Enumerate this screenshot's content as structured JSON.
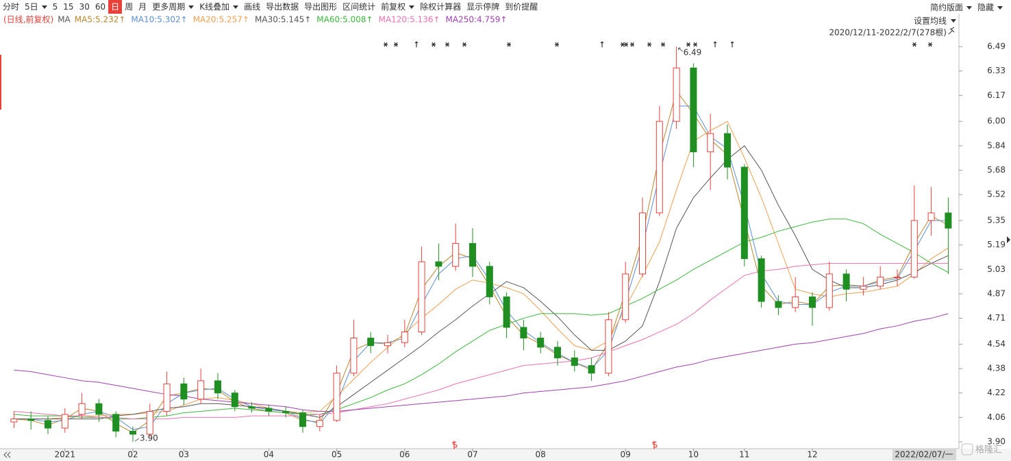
{
  "toolbar": {
    "items": [
      "分时",
      "5日",
      "5",
      "15",
      "30",
      "60",
      "日",
      "周",
      "月",
      "更多周期",
      "K线叠加",
      "画线",
      "导出数据",
      "导出图形",
      "区间统计",
      "前复权",
      "除权计算器",
      "显示停牌",
      "到价提醒"
    ],
    "right_items": [
      "简约版面",
      "隐藏"
    ]
  },
  "chart_data": {
    "type": "candlestick",
    "title": "(日线,前复权)",
    "indicator": "MA",
    "settings_label": "设置均线",
    "range_label": "2020/12/11-2022/2/7(278根)",
    "cursor_date": "2022/02/07/一",
    "categories": [
      null,
      null,
      null,
      "2021",
      null,
      null,
      null,
      "02",
      null,
      null,
      "03",
      null,
      null,
      null,
      null,
      "04",
      null,
      null,
      null,
      "05",
      null,
      null,
      null,
      "06",
      null,
      null,
      null,
      "07",
      null,
      null,
      null,
      "08",
      null,
      null,
      null,
      null,
      "09",
      null,
      null,
      null,
      "10",
      null,
      null,
      "11",
      null,
      null,
      null,
      "12",
      null,
      null,
      null,
      null,
      null,
      null,
      null,
      null
    ],
    "open": [
      4.03,
      4.05,
      4.04,
      3.99,
      4.08,
      4.15,
      4.08,
      3.97,
      3.95,
      4.1,
      4.28,
      4.18,
      4.3,
      4.22,
      4.13,
      4.12,
      4.1,
      4.09,
      4.0,
      4.04,
      4.35,
      4.58,
      4.53,
      4.55,
      4.62,
      5.08,
      5.05,
      5.2,
      5.05,
      4.85,
      4.65,
      4.58,
      4.52,
      4.45,
      4.4,
      4.35,
      4.7,
      5.0,
      5.4,
      6.0,
      6.35,
      5.8,
      5.92,
      5.7,
      5.1,
      4.82,
      4.78,
      4.85,
      4.78,
      5.0,
      4.9,
      4.92,
      4.98,
      4.98,
      5.35,
      5.4
    ],
    "high": [
      4.1,
      4.1,
      4.07,
      4.12,
      4.22,
      4.18,
      4.1,
      4.0,
      4.15,
      4.36,
      4.32,
      4.38,
      4.35,
      4.24,
      4.16,
      4.14,
      4.13,
      4.11,
      4.08,
      4.4,
      4.7,
      4.62,
      4.6,
      4.7,
      5.18,
      5.2,
      5.33,
      5.3,
      5.08,
      4.88,
      4.7,
      4.62,
      4.56,
      4.5,
      4.45,
      4.75,
      5.08,
      5.5,
      6.1,
      6.49,
      6.38,
      6.05,
      5.98,
      5.72,
      5.12,
      4.86,
      4.98,
      4.88,
      5.08,
      5.03,
      4.98,
      5.05,
      5.03,
      5.58,
      5.57,
      5.5
    ],
    "low": [
      3.99,
      3.98,
      3.95,
      3.96,
      4.05,
      4.03,
      3.93,
      3.9,
      3.93,
      4.07,
      4.14,
      4.15,
      4.18,
      4.1,
      4.09,
      4.07,
      4.06,
      3.96,
      3.97,
      4.03,
      4.33,
      4.48,
      4.48,
      4.52,
      4.6,
      4.96,
      5.02,
      4.98,
      4.8,
      4.58,
      4.5,
      4.48,
      4.4,
      4.36,
      4.3,
      4.33,
      4.68,
      4.98,
      5.38,
      5.95,
      5.7,
      5.55,
      5.62,
      5.05,
      4.78,
      4.73,
      4.75,
      4.66,
      4.76,
      4.82,
      4.86,
      4.9,
      4.92,
      4.97,
      5.25,
      5.0
    ],
    "close": [
      4.05,
      4.04,
      3.99,
      4.08,
      4.15,
      4.08,
      3.97,
      3.95,
      4.1,
      4.28,
      4.18,
      4.3,
      4.22,
      4.13,
      4.12,
      4.1,
      4.09,
      4.0,
      4.04,
      4.35,
      4.58,
      4.53,
      4.55,
      4.62,
      5.08,
      5.05,
      5.2,
      5.05,
      4.85,
      4.65,
      4.58,
      4.52,
      4.45,
      4.4,
      4.35,
      4.7,
      5.0,
      5.4,
      6.0,
      6.35,
      5.8,
      5.92,
      5.7,
      5.1,
      4.82,
      4.78,
      4.85,
      4.78,
      5.0,
      4.9,
      4.92,
      4.98,
      4.98,
      5.35,
      5.4,
      5.3
    ],
    "up_color": "#e8413a",
    "down_color": "#1f8f22",
    "series": [
      {
        "name": "MA5:5.232↑",
        "color": "#b8862e",
        "values": [
          4.05,
          4.04,
          4.01,
          4.05,
          4.12,
          4.1,
          4.02,
          3.96,
          4.04,
          4.2,
          4.22,
          4.25,
          4.24,
          4.16,
          4.12,
          4.1,
          4.09,
          4.04,
          4.03,
          4.22,
          4.5,
          4.55,
          4.54,
          4.6,
          4.9,
          5.05,
          5.14,
          5.1,
          4.92,
          4.72,
          4.6,
          4.54,
          4.47,
          4.42,
          4.37,
          4.55,
          4.88,
          5.25,
          5.78,
          6.2,
          6.05,
          5.88,
          5.78,
          5.35,
          4.92,
          4.8,
          4.82,
          4.8,
          4.92,
          4.93,
          4.92,
          4.96,
          4.98,
          5.2,
          5.38,
          5.32
        ]
      },
      {
        "name": "MA10:5.302↑",
        "color": "#5b8fd6",
        "values": [
          4.05,
          4.05,
          4.03,
          4.04,
          4.08,
          4.1,
          4.06,
          3.98,
          4.0,
          4.15,
          4.22,
          4.24,
          4.25,
          4.18,
          4.13,
          4.11,
          4.1,
          4.05,
          4.02,
          4.15,
          4.43,
          4.55,
          4.55,
          4.58,
          4.8,
          5.0,
          5.1,
          5.12,
          4.96,
          4.76,
          4.63,
          4.55,
          4.48,
          4.42,
          4.38,
          4.5,
          4.82,
          5.18,
          5.65,
          6.1,
          6.1,
          5.9,
          5.82,
          5.45,
          5.0,
          4.82,
          4.8,
          4.8,
          4.88,
          4.92,
          4.92,
          4.95,
          4.97,
          5.15,
          5.35,
          5.35
        ]
      },
      {
        "name": "MA20:5.257↑",
        "color": "#f0a050",
        "values": [
          4.05,
          4.05,
          4.05,
          4.06,
          4.07,
          4.07,
          4.08,
          4.08,
          4.09,
          4.1,
          4.14,
          4.18,
          4.19,
          4.17,
          4.15,
          4.12,
          4.1,
          4.09,
          4.1,
          4.2,
          4.31,
          4.42,
          4.52,
          4.61,
          4.71,
          4.8,
          4.9,
          4.96,
          4.94,
          4.91,
          4.87,
          4.76,
          4.64,
          4.53,
          4.5,
          4.56,
          4.78,
          4.99,
          5.21,
          5.55,
          5.87,
          5.94,
          6.0,
          5.76,
          5.5,
          5.2,
          4.9,
          4.87,
          4.85,
          4.87,
          4.88,
          4.9,
          4.92,
          5.0,
          5.1,
          5.17
        ]
      },
      {
        "name": "MA30:5.145↑",
        "color": "#555555",
        "values": [
          4.05,
          4.05,
          4.05,
          4.05,
          4.05,
          4.05,
          4.07,
          4.08,
          4.1,
          4.12,
          4.13,
          4.15,
          4.15,
          4.14,
          4.13,
          4.12,
          4.1,
          4.08,
          4.06,
          4.13,
          4.21,
          4.29,
          4.37,
          4.45,
          4.53,
          4.62,
          4.7,
          4.79,
          4.87,
          4.95,
          4.91,
          4.82,
          4.72,
          4.6,
          4.5,
          4.5,
          4.56,
          4.66,
          4.95,
          5.3,
          5.5,
          5.63,
          5.75,
          5.84,
          5.68,
          5.45,
          5.25,
          5.03,
          4.96,
          4.91,
          4.91,
          4.93,
          4.96,
          5.01,
          5.07,
          5.12
        ]
      },
      {
        "name": "MA60:5.008↑",
        "color": "#3cb83c",
        "values": [
          4.08,
          4.07,
          4.07,
          4.07,
          4.06,
          4.06,
          4.05,
          4.05,
          4.06,
          4.07,
          4.09,
          4.1,
          4.11,
          4.12,
          4.11,
          4.1,
          4.09,
          4.08,
          4.08,
          4.11,
          4.15,
          4.19,
          4.24,
          4.28,
          4.34,
          4.41,
          4.49,
          4.56,
          4.63,
          4.67,
          4.71,
          4.74,
          4.74,
          4.74,
          4.73,
          4.74,
          4.79,
          4.84,
          4.9,
          4.96,
          5.03,
          5.09,
          5.15,
          5.21,
          5.24,
          5.28,
          5.31,
          5.34,
          5.36,
          5.36,
          5.33,
          5.26,
          5.2,
          5.14,
          5.07,
          5.01
        ]
      },
      {
        "name": "MA120:5.136↑",
        "color": "#ef6fb0",
        "values": [
          4.1,
          4.09,
          4.08,
          4.07,
          4.07,
          4.06,
          4.06,
          4.05,
          4.05,
          4.05,
          4.06,
          4.06,
          4.06,
          4.06,
          4.07,
          4.07,
          4.07,
          4.07,
          4.08,
          4.09,
          4.11,
          4.13,
          4.15,
          4.18,
          4.21,
          4.24,
          4.28,
          4.31,
          4.34,
          4.37,
          4.4,
          4.41,
          4.42,
          4.43,
          4.45,
          4.49,
          4.53,
          4.57,
          4.62,
          4.67,
          4.74,
          4.83,
          4.91,
          4.99,
          5.02,
          5.03,
          5.05,
          5.06,
          5.07,
          5.07,
          5.07,
          5.07,
          5.07,
          5.07,
          5.07,
          5.07
        ]
      },
      {
        "name": "MA250:4.759↑",
        "color": "#a040b0",
        "values": [
          4.37,
          4.36,
          4.34,
          4.32,
          4.3,
          4.29,
          4.27,
          4.25,
          4.23,
          4.21,
          4.2,
          4.18,
          4.17,
          4.16,
          4.15,
          4.14,
          4.13,
          4.11,
          4.1,
          4.1,
          4.11,
          4.12,
          4.13,
          4.14,
          4.15,
          4.16,
          4.17,
          4.18,
          4.19,
          4.2,
          4.22,
          4.23,
          4.24,
          4.25,
          4.26,
          4.28,
          4.3,
          4.33,
          4.36,
          4.39,
          4.41,
          4.44,
          4.46,
          4.48,
          4.5,
          4.52,
          4.54,
          4.55,
          4.57,
          4.59,
          4.61,
          4.64,
          4.66,
          4.69,
          4.71,
          4.74
        ]
      }
    ],
    "ylim": [
      3.9,
      6.49
    ],
    "yticks": [
      6.49,
      6.33,
      6.17,
      {
        "value": 6.0,
        "label": "6.00"
      },
      5.84,
      5.68,
      5.52,
      5.35,
      5.19,
      5.03,
      4.87,
      4.71,
      4.54,
      4.38,
      4.22,
      4.06,
      {
        "value": 3.9,
        "label": "3.90"
      }
    ],
    "annotations": [
      {
        "value": 6.49,
        "label": "6.49"
      },
      {
        "value": 3.9,
        "label": "3.90"
      }
    ]
  },
  "watermark": "格隆汇"
}
